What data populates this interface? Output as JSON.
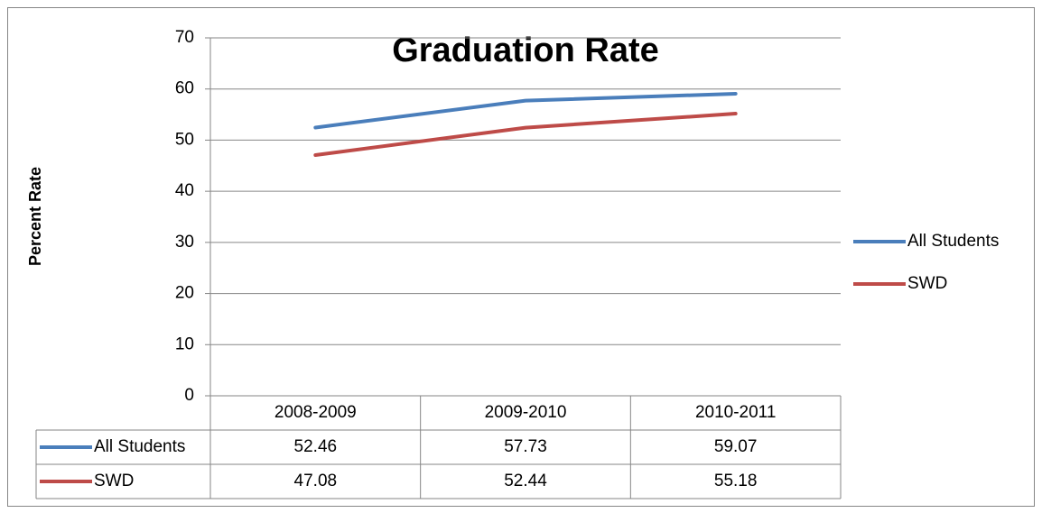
{
  "chart_data": {
    "type": "line",
    "title": "Graduation Rate",
    "y_label": "Percent Rate",
    "categories": [
      "2008-2009",
      "2009-2010",
      "2010-2011"
    ],
    "series": [
      {
        "name": "All Students",
        "color": "#4a7ebb",
        "values": [
          52.46,
          57.73,
          59.07
        ]
      },
      {
        "name": "SWD",
        "color": "#be4b48",
        "values": [
          47.08,
          52.44,
          55.18
        ]
      }
    ],
    "ylim": [
      0,
      70
    ],
    "yticks": [
      0,
      10,
      20,
      30,
      40,
      50,
      60,
      70
    ],
    "grid": true,
    "legend": "right",
    "data_table": true
  }
}
